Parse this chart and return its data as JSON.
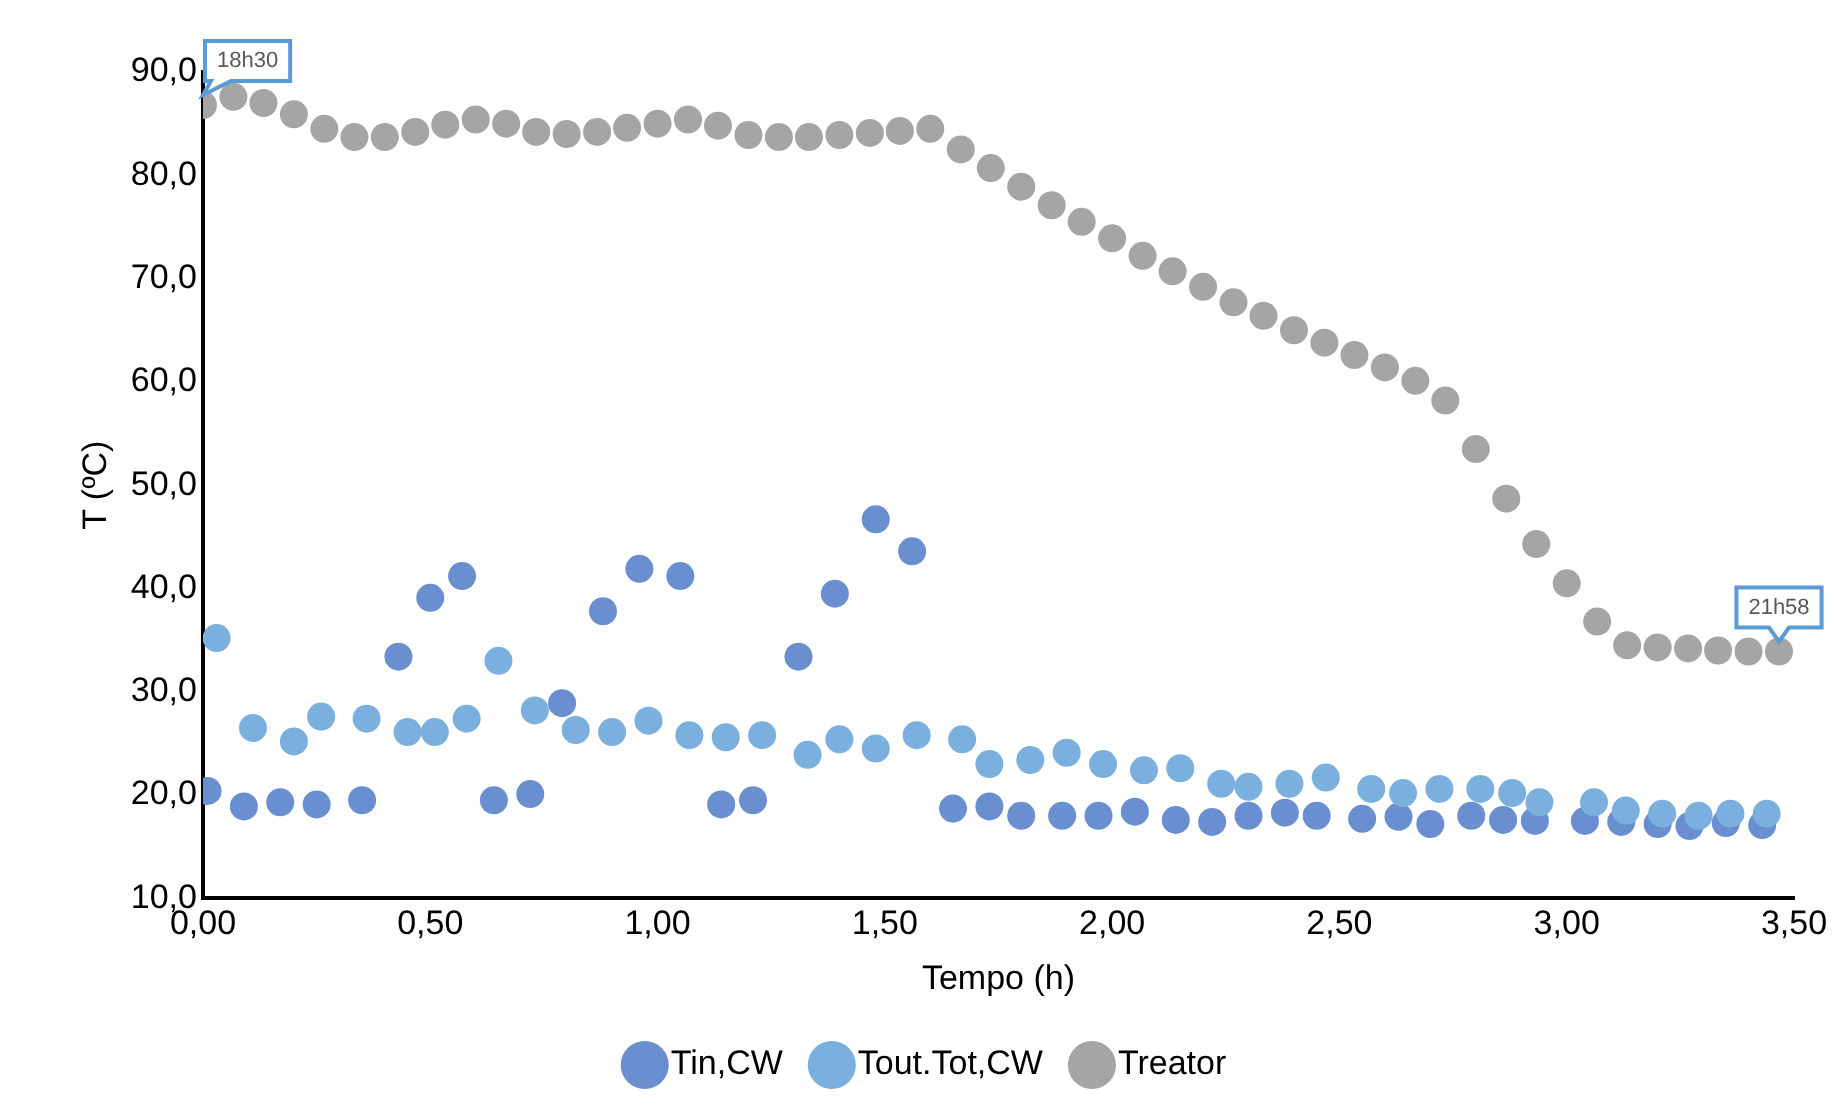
{
  "chart_data": {
    "type": "scatter",
    "xlabel": "Tempo (h)",
    "ylabel": "T (ºC)",
    "xlim": [
      0,
      3.5
    ],
    "ylim": [
      10,
      90
    ],
    "xticks": [
      {
        "value": 0,
        "label": "0,00"
      },
      {
        "value": 0.5,
        "label": "0,50"
      },
      {
        "value": 1,
        "label": "1,00"
      },
      {
        "value": 1.5,
        "label": "1,50"
      },
      {
        "value": 2,
        "label": "2,00"
      },
      {
        "value": 2.5,
        "label": "2,50"
      },
      {
        "value": 3,
        "label": "3,00"
      },
      {
        "value": 3.5,
        "label": "3,50"
      }
    ],
    "yticks": [
      {
        "value": 10,
        "label": "10,0"
      },
      {
        "value": 20,
        "label": "20,0"
      },
      {
        "value": 30,
        "label": "30,0"
      },
      {
        "value": 40,
        "label": "40,0"
      },
      {
        "value": 50,
        "label": "50,0"
      },
      {
        "value": 60,
        "label": "60,0"
      },
      {
        "value": 70,
        "label": "70,0"
      },
      {
        "value": 80,
        "label": "80,0"
      },
      {
        "value": 90,
        "label": "90,0"
      }
    ],
    "grid": false,
    "legend": "bottom",
    "marker": "circle",
    "annotations": [
      {
        "text": "18h30",
        "x": 0,
        "y": 86.8
      },
      {
        "text": "21h58",
        "x": 3.467,
        "y": 33.9
      }
    ],
    "series": [
      {
        "name": "Tin,CW",
        "color": "#6a8fd0",
        "x": [
          0.01,
          0.09,
          0.17,
          0.25,
          0.35,
          0.43,
          0.5,
          0.57,
          0.64,
          0.72,
          0.79,
          0.88,
          0.96,
          1.05,
          1.14,
          1.21,
          1.31,
          1.39,
          1.48,
          1.56,
          1.65,
          1.73,
          1.8,
          1.89,
          1.97,
          2.05,
          2.14,
          2.22,
          2.3,
          2.38,
          2.45,
          2.55,
          2.63,
          2.7,
          2.79,
          2.86,
          2.93,
          3.04,
          3.12,
          3.2,
          3.27,
          3.35,
          3.43
        ],
        "values": [
          20.4,
          18.9,
          19.3,
          19.1,
          19.5,
          33.4,
          39.1,
          41.2,
          19.5,
          20.1,
          28.9,
          37.8,
          41.9,
          41.2,
          19.1,
          19.5,
          33.4,
          39.5,
          46.7,
          43.6,
          18.7,
          18.9,
          18,
          18,
          18,
          18.4,
          17.6,
          17.4,
          18,
          18.3,
          18,
          17.7,
          17.9,
          17.2,
          18,
          17.6,
          17.5,
          17.5,
          17.4,
          17.2,
          17,
          17.3,
          17.1
        ]
      },
      {
        "name": "Tout.Tot,CW",
        "color": "#7bafde",
        "x": [
          0.03,
          0.11,
          0.2,
          0.26,
          0.36,
          0.45,
          0.51,
          0.58,
          0.65,
          0.73,
          0.82,
          0.9,
          0.98,
          1.07,
          1.15,
          1.23,
          1.33,
          1.4,
          1.48,
          1.57,
          1.67,
          1.73,
          1.82,
          1.9,
          1.98,
          2.07,
          2.15,
          2.24,
          2.3,
          2.39,
          2.47,
          2.57,
          2.64,
          2.72,
          2.81,
          2.88,
          2.94,
          3.06,
          3.13,
          3.21,
          3.29,
          3.36,
          3.44
        ],
        "values": [
          35.2,
          26.5,
          25.2,
          27.6,
          27.4,
          26.1,
          26.1,
          27.4,
          33,
          28.2,
          26.3,
          26.1,
          27.2,
          25.8,
          25.6,
          25.8,
          23.9,
          25.4,
          24.5,
          25.8,
          25.4,
          23,
          23.4,
          24.1,
          23,
          22.4,
          22.6,
          21.1,
          20.8,
          21.1,
          21.7,
          20.6,
          20.2,
          20.6,
          20.6,
          20.2,
          19.3,
          19.3,
          18.5,
          18.2,
          18,
          18.2,
          18.2
        ]
      },
      {
        "name": "Treator",
        "color": "#a5a5a5",
        "x": [
          0,
          0.067,
          0.133,
          0.2,
          0.267,
          0.333,
          0.4,
          0.467,
          0.533,
          0.6,
          0.667,
          0.733,
          0.8,
          0.867,
          0.933,
          1,
          1.067,
          1.133,
          1.2,
          1.267,
          1.333,
          1.4,
          1.467,
          1.533,
          1.6,
          1.667,
          1.733,
          1.8,
          1.867,
          1.933,
          2,
          2.067,
          2.133,
          2.2,
          2.267,
          2.333,
          2.4,
          2.467,
          2.533,
          2.6,
          2.667,
          2.733,
          2.8,
          2.867,
          2.933,
          3,
          3.067,
          3.133,
          3.2,
          3.267,
          3.333,
          3.4,
          3.467
        ],
        "values": [
          86.8,
          87.6,
          87,
          85.9,
          84.5,
          83.7,
          83.7,
          84.2,
          84.9,
          85.4,
          85,
          84.2,
          84,
          84.2,
          84.6,
          85,
          85.4,
          84.8,
          83.9,
          83.7,
          83.7,
          83.9,
          84.1,
          84.3,
          84.5,
          82.5,
          80.7,
          78.9,
          77.1,
          75.5,
          73.9,
          72.2,
          70.7,
          69.2,
          67.7,
          66.4,
          65,
          63.8,
          62.6,
          61.4,
          60.1,
          58.2,
          53.5,
          48.7,
          44.3,
          40.5,
          36.8,
          34.5,
          34.3,
          34.2,
          34,
          33.9,
          33.9
        ]
      }
    ]
  }
}
